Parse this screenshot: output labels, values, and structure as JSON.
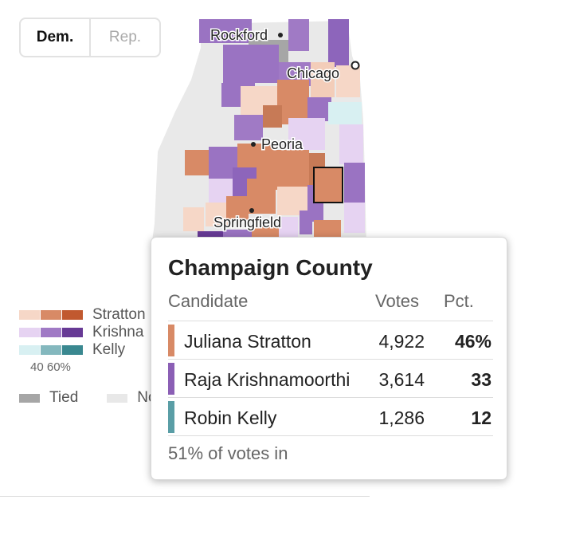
{
  "toggle": {
    "options": [
      "Dem.",
      "Rep."
    ],
    "active": "Dem."
  },
  "map": {
    "cities": [
      "Rockford",
      "Chicago",
      "Peoria",
      "Springfield"
    ],
    "colors": {
      "stratton_light": "#f6d7c7",
      "stratton_mid": "#d88a66",
      "stratton_dark": "#c1592f",
      "krishna_light": "#e6d3f2",
      "krishna_mid": "#a07ac5",
      "krishna_dark": "#673a95",
      "kelly_light": "#d8f0f2",
      "kelly_mid": "#84b8be",
      "kelly_dark": "#3a8890",
      "tied": "#a6a6a6",
      "no_results": "#e8e8e8"
    }
  },
  "legend": {
    "candidates": [
      "Stratton",
      "Krishna",
      "Kelly"
    ],
    "scale": "40 60%",
    "tied": "Tied",
    "no_results": "No"
  },
  "tooltip": {
    "county": "Champaign County",
    "headers": {
      "candidate": "Candidate",
      "votes": "Votes",
      "pct": "Pct."
    },
    "rows": [
      {
        "name": "Juliana Stratton",
        "votes": "4,922",
        "pct": "46%",
        "color": "#d88a66"
      },
      {
        "name": "Raja Krishnamoorthi",
        "votes": "3,614",
        "pct": "33",
        "color": "#8b5fb5"
      },
      {
        "name": "Robin Kelly",
        "votes": "1,286",
        "pct": "12",
        "color": "#5a9ea6"
      }
    ],
    "footer": "51% of votes in"
  }
}
